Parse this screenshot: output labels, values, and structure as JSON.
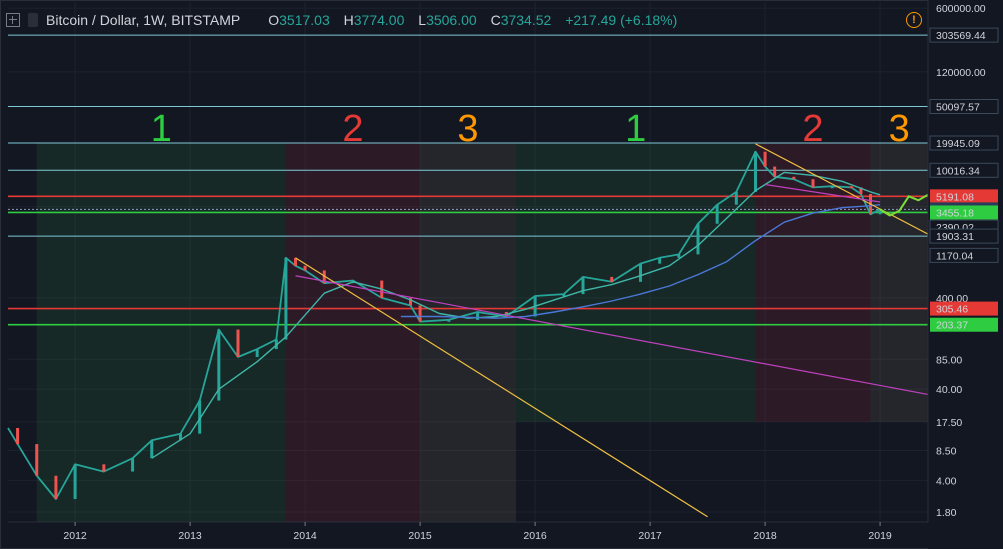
{
  "header": {
    "symbol": "Bitcoin / Dollar, 1W, BITSTAMP",
    "o_label": "O",
    "o_value": "3517.03",
    "h_label": "H",
    "h_value": "3774.00",
    "l_label": "L",
    "l_value": "3506.00",
    "c_label": "C",
    "c_value": "3734.52",
    "change": "+217.49 (+6.18%)",
    "warning_icon": "!"
  },
  "chart_data": {
    "type": "line",
    "title": "Bitcoin / Dollar, 1W, BITSTAMP",
    "scale": "log",
    "ylim": [
      1.4,
      700000
    ],
    "xlim": [
      "2011-06",
      "2019-06"
    ],
    "x_ticks": [
      "2012",
      "2013",
      "2014",
      "2015",
      "2016",
      "2017",
      "2018",
      "2019"
    ],
    "y_ticks": [
      "600000.00",
      "120000.00",
      "400.00",
      "85.00",
      "40.00",
      "17.50",
      "8.50",
      "4.00",
      "1.80"
    ],
    "price_labels": [
      {
        "text": "303569.44",
        "value": 303569.44,
        "color": "#0e1a2b"
      },
      {
        "text": "50097.57",
        "value": 50097.57,
        "color": "#0e1a2b"
      },
      {
        "text": "19945.09",
        "value": 19945.09,
        "color": "#0e1a2b"
      },
      {
        "text": "10016.34",
        "value": 10016.34,
        "color": "#0e1a2b"
      },
      {
        "text": "5191.08",
        "value": 5191.08,
        "color": "#e53935"
      },
      {
        "text": "3734.52",
        "value": 3734.52,
        "color": "#2a3a5a"
      },
      {
        "text": "3455.18",
        "value": 3455.18,
        "color": "#2ecc40"
      },
      {
        "text": "2390.02",
        "value": 2390.02,
        "color": "#0e1a2b"
      },
      {
        "text": "1903.31",
        "value": 1903.31,
        "color": "#0e1a2b"
      },
      {
        "text": "1170.04",
        "value": 1170.04,
        "color": "#0e1a2b"
      },
      {
        "text": "305.46",
        "value": 305.46,
        "color": "#e53935"
      },
      {
        "text": "203.37",
        "value": 203.37,
        "color": "#2ecc40"
      }
    ],
    "horizontal_levels": [
      {
        "value": 303569.44,
        "color": "#7ec8d6"
      },
      {
        "value": 50097.57,
        "color": "#7ec8d6"
      },
      {
        "value": 19945.09,
        "color": "#7ec8d6"
      },
      {
        "value": 10016.34,
        "color": "#7ec8d6"
      },
      {
        "value": 1903.31,
        "color": "#7ec8d6"
      },
      {
        "value": 5191.08,
        "color": "#e53935"
      },
      {
        "value": 305.46,
        "color": "#e53935"
      },
      {
        "value": 3455.18,
        "color": "#2ecc40"
      },
      {
        "value": 203.37,
        "color": "#2ecc40"
      },
      {
        "value": 3734.52,
        "color": "#8ea0c0"
      }
    ],
    "phases": [
      {
        "label": "1",
        "start": "2011-09",
        "end": "2013-11",
        "color": "#2ecc40"
      },
      {
        "label": "2",
        "start": "2013-11",
        "end": "2015-01",
        "color": "#e53935"
      },
      {
        "label": "3",
        "start": "2015-01",
        "end": "2015-11",
        "color": "#ff9800"
      },
      {
        "label": "1",
        "start": "2015-11",
        "end": "2017-12",
        "color": "#2ecc40"
      },
      {
        "label": "2",
        "start": "2017-12",
        "end": "2018-12",
        "color": "#e53935"
      },
      {
        "label": "3",
        "start": "2018-12",
        "end": "2019-06",
        "color": "#ff9800"
      }
    ],
    "series": [
      {
        "color": "#26a69a",
        "kind": "price",
        "x": [
          "2011-06",
          "2011-07",
          "2011-09",
          "2011-11",
          "2012-01",
          "2012-04",
          "2012-07",
          "2012-09",
          "2012-12",
          "2013-02",
          "2013-04",
          "2013-06",
          "2013-08",
          "2013-10",
          "2013-11",
          "2013-12",
          "2014-01",
          "2014-03",
          "2014-06",
          "2014-09",
          "2014-12",
          "2015-01",
          "2015-04",
          "2015-07",
          "2015-10",
          "2016-01",
          "2016-04",
          "2016-06",
          "2016-09",
          "2016-12",
          "2017-02",
          "2017-04",
          "2017-06",
          "2017-08",
          "2017-10",
          "2017-12",
          "2018-01",
          "2018-02",
          "2018-04",
          "2018-06",
          "2018-08",
          "2018-10",
          "2018-11",
          "2018-12",
          "2019-01"
        ],
        "y": [
          15,
          10,
          4.5,
          2.5,
          6,
          5,
          7,
          11,
          13,
          30,
          180,
          90,
          110,
          140,
          1100,
          900,
          800,
          580,
          620,
          400,
          330,
          220,
          230,
          280,
          250,
          420,
          440,
          680,
          600,
          950,
          1100,
          1200,
          2600,
          4200,
          5800,
          16000,
          11000,
          8500,
          8000,
          6500,
          6700,
          6500,
          5500,
          3300,
          3734.52
        ]
      },
      {
        "color": "#3fb6a8",
        "kind": "ma_fast",
        "x": [
          "2012-09",
          "2013-01",
          "2013-04",
          "2013-08",
          "2013-11",
          "2014-03",
          "2014-06",
          "2014-09",
          "2014-12",
          "2015-03",
          "2015-06",
          "2015-09",
          "2015-12",
          "2016-03",
          "2016-06",
          "2016-09",
          "2016-12",
          "2017-03",
          "2017-06",
          "2017-09",
          "2017-12",
          "2018-03",
          "2018-06",
          "2018-09",
          "2018-12",
          "2019-01"
        ],
        "y": [
          7,
          13,
          40,
          80,
          150,
          450,
          600,
          500,
          380,
          270,
          240,
          250,
          300,
          380,
          480,
          560,
          700,
          900,
          1500,
          3000,
          6000,
          9500,
          8800,
          7600,
          5800,
          5400
        ]
      },
      {
        "color": "#4a78d8",
        "kind": "ma_slow",
        "x": [
          "2014-11",
          "2015-03",
          "2015-06",
          "2015-09",
          "2015-12",
          "2016-03",
          "2016-06",
          "2016-09",
          "2016-12",
          "2017-03",
          "2017-06",
          "2017-09",
          "2017-12",
          "2018-03",
          "2018-06",
          "2018-09",
          "2018-12",
          "2019-01"
        ],
        "y": [
          250,
          250,
          245,
          240,
          250,
          280,
          320,
          370,
          440,
          540,
          720,
          1000,
          1700,
          2700,
          3400,
          3900,
          4100,
          4200
        ]
      }
    ],
    "trendlines": [
      {
        "color": "#f0c040",
        "points": [
          [
            "2013-12",
            1100
          ],
          [
            "2017-07",
            1.6
          ]
        ]
      },
      {
        "color": "#f0c040",
        "points": [
          [
            "2017-12",
            19500
          ],
          [
            "2019-06",
            2000
          ]
        ]
      },
      {
        "color": "#c040c0",
        "points": [
          [
            "2013-12",
            700
          ],
          [
            "2019-06",
            35
          ]
        ]
      },
      {
        "color": "#c040c0",
        "points": [
          [
            "2018-01",
            7000
          ],
          [
            "2019-01",
            4500
          ]
        ]
      }
    ],
    "projection": {
      "color": "#7ddc3a",
      "x": [
        "2019-01",
        "2019-02",
        "2019-03",
        "2019-04",
        "2019-05",
        "2019-06"
      ],
      "y": [
        3734.52,
        3200,
        3600,
        5200,
        4700,
        5400
      ]
    }
  }
}
